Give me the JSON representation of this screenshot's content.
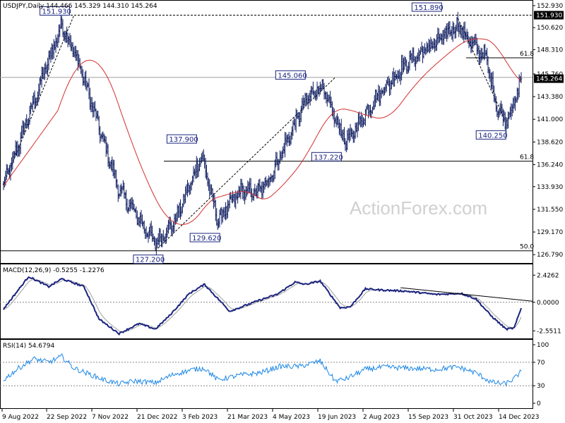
{
  "chart_data": {
    "type": "ohlc",
    "symbol_header": "USDJPY,Daily  144.466 145.329 144.310 145.264",
    "watermark": "ActionForex.com",
    "x_ticks": [
      "9 Aug 2022",
      "22 Sep 2022",
      "7 Nov 2022",
      "21 Dec 2022",
      "3 Feb 2023",
      "21 Mar 2023",
      "4 May 2023",
      "19 Jun 2023",
      "2 Aug 2023",
      "15 Sep 2023",
      "31 Oct 2023",
      "14 Dec 2023"
    ],
    "price_panel": {
      "ylim": [
        126.29,
        152.93
      ],
      "y_ticks": [
        "152.930",
        "150.620",
        "148.310",
        "145.760",
        "143.380",
        "141.000",
        "138.620",
        "136.240",
        "133.930",
        "131.550",
        "129.170",
        "126.790"
      ],
      "current_price": "145.264",
      "current_value": 145.264,
      "pivot_labels": [
        {
          "text": "151.930",
          "value": 151.93,
          "bar": 58
        },
        {
          "text": "127.200",
          "value": 127.2,
          "bar": 151
        },
        {
          "text": "137.900",
          "value": 137.9,
          "bar": 197
        },
        {
          "text": "129.620",
          "value": 129.62,
          "bar": 213
        },
        {
          "text": "145.060",
          "value": 145.06,
          "bar": 315
        },
        {
          "text": "137.220",
          "value": 137.22,
          "bar": 341
        },
        {
          "text": "151.890",
          "value": 151.89,
          "bar": 452
        },
        {
          "text": "140.250",
          "value": 140.25,
          "bar": 499
        }
      ],
      "horizontal_levels": [
        {
          "value": 151.93,
          "style": "dashed",
          "right_tag": "151.930"
        },
        {
          "value": 145.4,
          "style": "solid-gray"
        },
        {
          "value": 136.6,
          "style": "solid",
          "label": "61.8"
        },
        {
          "value": 127.2,
          "style": "solid",
          "label": "50.0"
        },
        {
          "value": 147.45,
          "style": "solid-short",
          "label": "61.8"
        }
      ],
      "anchors": [
        {
          "bar": 0,
          "close": 134.0
        },
        {
          "bar": 58,
          "close": 151.0
        },
        {
          "bar": 75,
          "close": 146.8
        },
        {
          "bar": 100,
          "close": 138.5
        },
        {
          "bar": 115,
          "close": 133.6
        },
        {
          "bar": 151,
          "close": 128.0
        },
        {
          "bar": 170,
          "close": 130.2
        },
        {
          "bar": 185,
          "close": 134.0
        },
        {
          "bar": 197,
          "close": 137.2
        },
        {
          "bar": 213,
          "close": 130.4
        },
        {
          "bar": 235,
          "close": 133.4
        },
        {
          "bar": 255,
          "close": 133.4
        },
        {
          "bar": 268,
          "close": 135.5
        },
        {
          "bar": 300,
          "close": 142.8
        },
        {
          "bar": 315,
          "close": 144.6
        },
        {
          "bar": 341,
          "close": 138.5
        },
        {
          "bar": 370,
          "close": 143.2
        },
        {
          "bar": 400,
          "close": 146.8
        },
        {
          "bar": 430,
          "close": 149.0
        },
        {
          "bar": 452,
          "close": 150.9
        },
        {
          "bar": 465,
          "close": 149.0
        },
        {
          "bar": 480,
          "close": 147.5
        },
        {
          "bar": 490,
          "close": 142.5
        },
        {
          "bar": 499,
          "close": 140.9
        },
        {
          "bar": 508,
          "close": 142.6
        },
        {
          "bar": 515,
          "close": 145.26
        }
      ]
    },
    "macd_panel": {
      "label": "MACD(12,26,9) -0.5255 -1.2276",
      "ylim": [
        -3.1,
        3.2
      ],
      "y_ticks": [
        {
          "text": "2.4262",
          "value": 2.4262
        },
        {
          "text": "0.0000",
          "value": 0.0
        },
        {
          "text": "-2.5511",
          "value": -2.5511
        }
      ],
      "anchors": [
        {
          "bar": 0,
          "v": -0.6
        },
        {
          "bar": 25,
          "v": 2.3
        },
        {
          "bar": 45,
          "v": 1.4
        },
        {
          "bar": 58,
          "v": 2.1
        },
        {
          "bar": 80,
          "v": 1.4
        },
        {
          "bar": 95,
          "v": -1.5
        },
        {
          "bar": 115,
          "v": -2.8
        },
        {
          "bar": 135,
          "v": -1.9
        },
        {
          "bar": 151,
          "v": -2.4
        },
        {
          "bar": 165,
          "v": -1.2
        },
        {
          "bar": 185,
          "v": 0.8
        },
        {
          "bar": 200,
          "v": 1.6
        },
        {
          "bar": 225,
          "v": -0.8
        },
        {
          "bar": 255,
          "v": 0.2
        },
        {
          "bar": 272,
          "v": 0.7
        },
        {
          "bar": 290,
          "v": 1.8
        },
        {
          "bar": 300,
          "v": 1.6
        },
        {
          "bar": 315,
          "v": 1.9
        },
        {
          "bar": 335,
          "v": -0.5
        },
        {
          "bar": 345,
          "v": -0.4
        },
        {
          "bar": 360,
          "v": 1.2
        },
        {
          "bar": 375,
          "v": 1.1
        },
        {
          "bar": 400,
          "v": 1.0
        },
        {
          "bar": 430,
          "v": 0.7
        },
        {
          "bar": 455,
          "v": 0.8
        },
        {
          "bar": 470,
          "v": 0.3
        },
        {
          "bar": 485,
          "v": -1.2
        },
        {
          "bar": 500,
          "v": -2.4
        },
        {
          "bar": 508,
          "v": -2.3
        },
        {
          "bar": 515,
          "v": -0.53
        }
      ],
      "trendline": [
        {
          "bar": 395,
          "v": 1.3
        },
        {
          "bar": 545,
          "v": 0.1
        }
      ]
    },
    "rsi_panel": {
      "label": "RSI(14) 54.6794",
      "ylim": [
        0,
        100
      ],
      "y_ticks": [
        {
          "text": "100",
          "value": 100
        },
        {
          "text": "70",
          "value": 70
        },
        {
          "text": "30",
          "value": 30
        },
        {
          "text": "0",
          "value": 0
        }
      ],
      "anchors": [
        {
          "bar": 0,
          "v": 40
        },
        {
          "bar": 15,
          "v": 60
        },
        {
          "bar": 30,
          "v": 76
        },
        {
          "bar": 45,
          "v": 70
        },
        {
          "bar": 58,
          "v": 80
        },
        {
          "bar": 70,
          "v": 60
        },
        {
          "bar": 85,
          "v": 50
        },
        {
          "bar": 100,
          "v": 40
        },
        {
          "bar": 115,
          "v": 33
        },
        {
          "bar": 130,
          "v": 38
        },
        {
          "bar": 151,
          "v": 35
        },
        {
          "bar": 170,
          "v": 50
        },
        {
          "bar": 190,
          "v": 58
        },
        {
          "bar": 200,
          "v": 60
        },
        {
          "bar": 213,
          "v": 40
        },
        {
          "bar": 235,
          "v": 48
        },
        {
          "bar": 255,
          "v": 52
        },
        {
          "bar": 275,
          "v": 63
        },
        {
          "bar": 295,
          "v": 63
        },
        {
          "bar": 315,
          "v": 72
        },
        {
          "bar": 330,
          "v": 38
        },
        {
          "bar": 341,
          "v": 42
        },
        {
          "bar": 360,
          "v": 58
        },
        {
          "bar": 380,
          "v": 62
        },
        {
          "bar": 400,
          "v": 60
        },
        {
          "bar": 430,
          "v": 58
        },
        {
          "bar": 452,
          "v": 62
        },
        {
          "bar": 470,
          "v": 52
        },
        {
          "bar": 485,
          "v": 36
        },
        {
          "bar": 499,
          "v": 33
        },
        {
          "bar": 508,
          "v": 42
        },
        {
          "bar": 515,
          "v": 54.68
        }
      ]
    }
  }
}
